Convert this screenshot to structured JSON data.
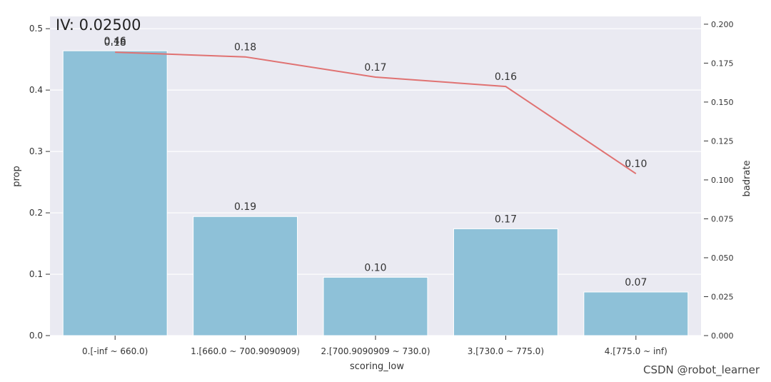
{
  "chart_data": {
    "type": "bar",
    "title": "IV: 0.02500",
    "xlabel": "scoring_low",
    "ylabel": "prop",
    "y2label": "badrate",
    "categories": [
      "0.[-inf ~ 660.0)",
      "1.[660.0 ~ 700.9090909)",
      "2.[700.9090909 ~ 730.0)",
      "3.[730.0 ~ 775.0)",
      "4.[775.0 ~ inf)"
    ],
    "bar_values": [
      0.464,
      0.194,
      0.095,
      0.174,
      0.071
    ],
    "bar_labels": [
      "0.46",
      "0.19",
      "0.10",
      "0.17",
      "0.07"
    ],
    "line_values": [
      0.182,
      0.179,
      0.166,
      0.16,
      0.104
    ],
    "line_labels": [
      "0.18",
      "0.18",
      "0.17",
      "0.16",
      "0.10"
    ],
    "ylim": [
      0,
      0.52
    ],
    "y_ticks": [
      "0.0",
      "0.1",
      "0.2",
      "0.3",
      "0.4",
      "0.5"
    ],
    "y2lim": [
      0,
      0.205
    ],
    "y2_ticks": [
      "0.000",
      "0.025",
      "0.050",
      "0.075",
      "0.100",
      "0.125",
      "0.150",
      "0.175",
      "0.200"
    ],
    "grid": true,
    "colors": {
      "bar": "#8ec1d8",
      "line": "#e07272",
      "background": "#eaeaf2",
      "grid": "#ffffff"
    }
  },
  "watermark": "CSDN @robot_learner"
}
